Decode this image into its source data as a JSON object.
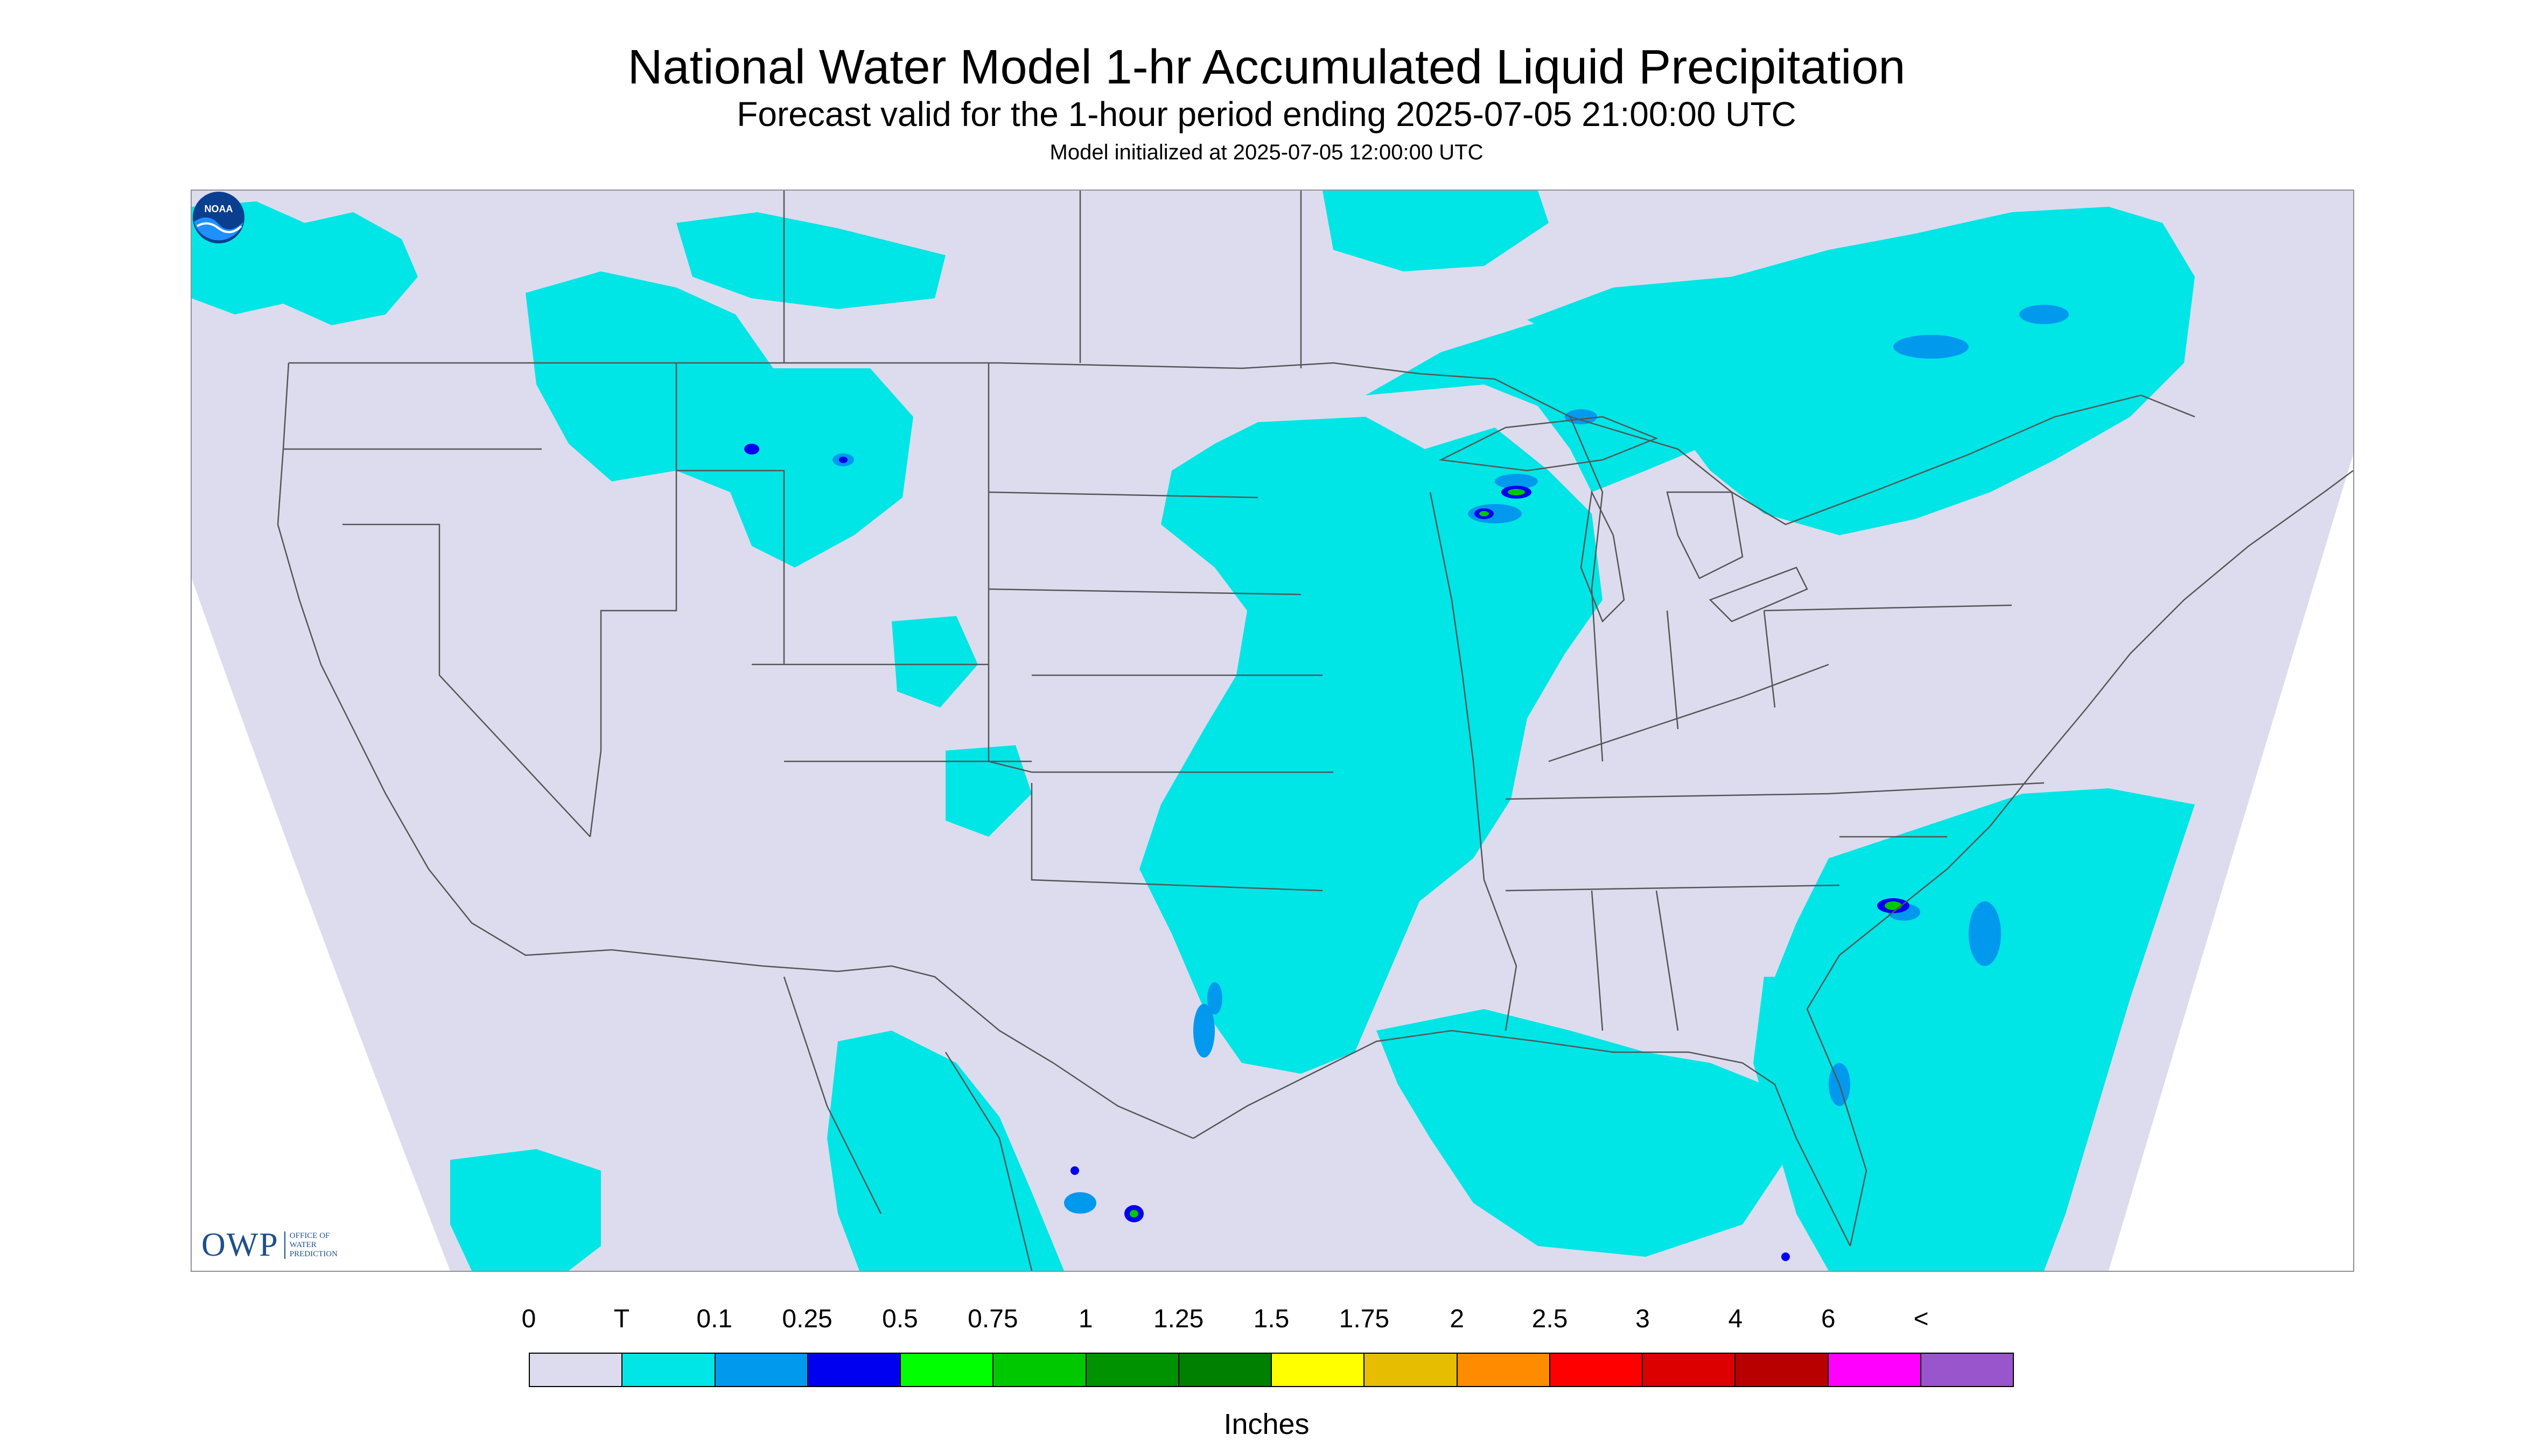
{
  "header": {
    "title": "National Water Model 1-hr Accumulated Liquid Precipitation",
    "subtitle": "Forecast valid for the 1-hour period ending 2025-07-05 21:00:00 UTC",
    "init": "Model initialized at 2025-07-05 12:00:00 UTC"
  },
  "logos": {
    "owp_big": "OWP",
    "owp_small_1": "Office of",
    "owp_small_2": "Water",
    "owp_small_3": "Prediction",
    "noaa": "NOAA"
  },
  "legend": {
    "labels": [
      "0",
      "T",
      "0.1",
      "0.25",
      "0.5",
      "0.75",
      "1",
      "1.25",
      "1.5",
      "1.75",
      "2",
      "2.5",
      "3",
      "4",
      "6",
      "<"
    ],
    "colors": [
      "#dcdcee",
      "#00e5e5",
      "#0099ee",
      "#0000f0",
      "#00ff00",
      "#00c800",
      "#009200",
      "#008000",
      "#ffff00",
      "#e6bd00",
      "#ff8c00",
      "#ff0000",
      "#dd0000",
      "#b80000",
      "#ff00ff",
      "#9955cc"
    ],
    "units": "Inches"
  },
  "map": {
    "no_precip_color": "#dcdcee",
    "trace_color": "#00e5e5",
    "light_color": "#0099ee",
    "moderate_color": "#0000f0",
    "heavy_color": "#00c800",
    "border_color": "#555555"
  }
}
